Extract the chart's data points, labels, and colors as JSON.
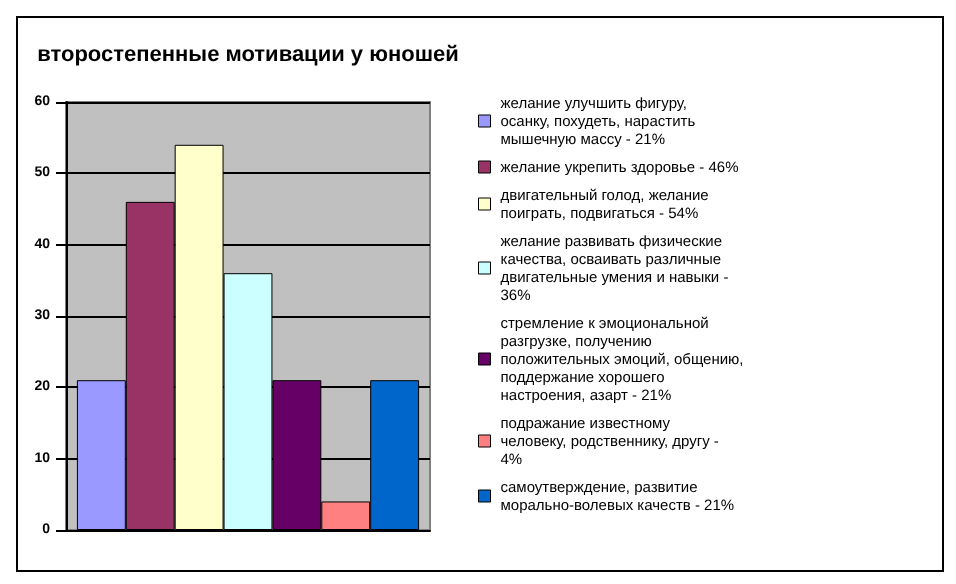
{
  "chart_data": {
    "type": "bar",
    "title": "второстепенные мотивации у юношей",
    "categories": [
      null
    ],
    "series": [
      {
        "name": "желание улучшить фигуру, осанку, похудеть, нарастить мышечную массу - 21%",
        "color": "#9999ff",
        "values": [
          21
        ]
      },
      {
        "name": "желание укрепить здоровье - 46%",
        "color": "#993366",
        "values": [
          46
        ]
      },
      {
        "name": "двигательный голод, желание поиграть, подвигаться - 54%",
        "color": "#ffffcc",
        "values": [
          54
        ]
      },
      {
        "name": "желание развивать физические качества, осваивать различные двигательные умения и навыки - 36%",
        "color": "#ccffff",
        "values": [
          36
        ]
      },
      {
        "name": "стремление к эмоциональной разгрузке, получению положительных эмоций, общению, поддержание хорошего настроения, азарт - 21%",
        "color": "#660066",
        "values": [
          21
        ]
      },
      {
        "name": "подражание известному человеку, родственнику, другу - 4%",
        "color": "#ff8080",
        "values": [
          4
        ]
      },
      {
        "name": "самоутверждение, развитие морально-волевых качеств - 21%",
        "color": "#0066cc",
        "values": [
          21
        ]
      }
    ],
    "ylim": [
      0,
      60
    ],
    "yticks": [
      0,
      10,
      20,
      30,
      40,
      50,
      60
    ],
    "grid": "y",
    "legend": "right"
  }
}
